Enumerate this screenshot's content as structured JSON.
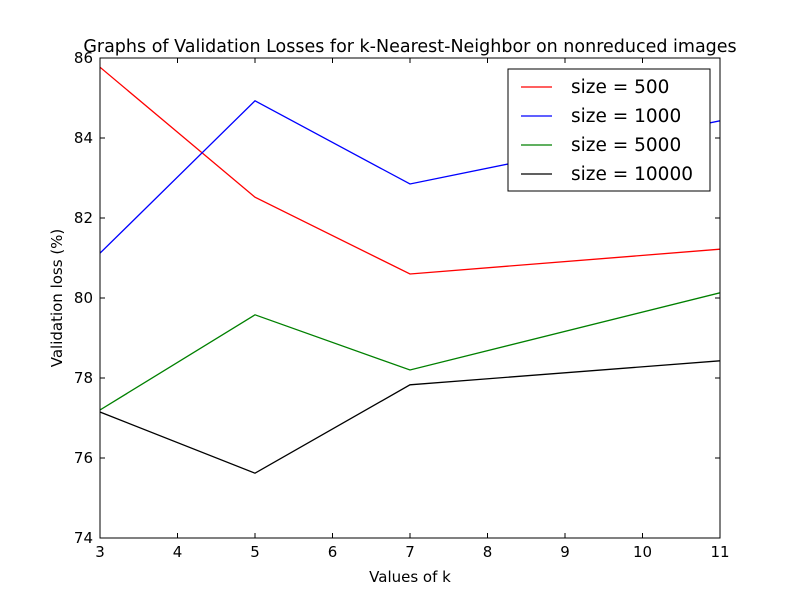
{
  "chart_data": {
    "type": "line",
    "title": "Graphs of Validation Losses for k-Nearest-Neighbor on nonreduced images",
    "xlabel": "Values of k",
    "ylabel": "Validation loss (%)",
    "xlim": [
      3,
      11
    ],
    "ylim": [
      74,
      86
    ],
    "xticks": [
      "3",
      "4",
      "5",
      "6",
      "7",
      "8",
      "9",
      "10",
      "11"
    ],
    "yticks": [
      "74",
      "76",
      "78",
      "80",
      "82",
      "84",
      "86"
    ],
    "x": [
      3,
      5,
      7,
      11
    ],
    "grid": false,
    "legend_position": "top-right",
    "series": [
      {
        "name": "size = 500",
        "color": "#ff0000",
        "values": [
          85.77,
          82.52,
          80.6,
          81.22
        ]
      },
      {
        "name": "size = 1000",
        "color": "#0000ff",
        "values": [
          81.12,
          84.93,
          82.85,
          84.43
        ]
      },
      {
        "name": "size = 5000",
        "color": "#008000",
        "values": [
          77.2,
          79.58,
          78.2,
          80.13
        ]
      },
      {
        "name": "size = 10000",
        "color": "#000000",
        "values": [
          77.15,
          75.62,
          77.83,
          78.43
        ]
      }
    ]
  }
}
